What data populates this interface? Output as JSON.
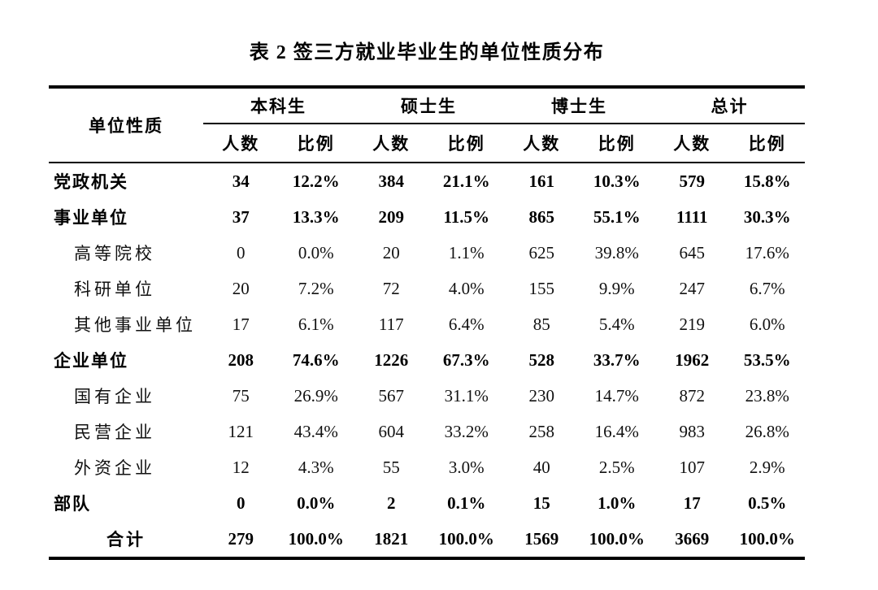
{
  "title": "表 2 签三方就业毕业生的单位性质分布",
  "colors": {
    "background": "#ffffff",
    "text": "#000000",
    "rule": "#000000"
  },
  "table": {
    "corner_header": "单位性质",
    "groups": [
      {
        "label": "本科生"
      },
      {
        "label": "硕士生"
      },
      {
        "label": "博士生"
      },
      {
        "label": "总计"
      }
    ],
    "sub_headers": [
      "人数",
      "比例",
      "人数",
      "比例",
      "人数",
      "比例",
      "人数",
      "比例"
    ],
    "rows": [
      {
        "label": "党政机关",
        "style": "category",
        "values": [
          "34",
          "12.2%",
          "384",
          "21.1%",
          "161",
          "10.3%",
          "579",
          "15.8%"
        ]
      },
      {
        "label": "事业单位",
        "style": "category",
        "values": [
          "37",
          "13.3%",
          "209",
          "11.5%",
          "865",
          "55.1%",
          "1111",
          "30.3%"
        ]
      },
      {
        "label": "高等院校",
        "style": "sub",
        "values": [
          "0",
          "0.0%",
          "20",
          "1.1%",
          "625",
          "39.8%",
          "645",
          "17.6%"
        ]
      },
      {
        "label": "科研单位",
        "style": "sub",
        "values": [
          "20",
          "7.2%",
          "72",
          "4.0%",
          "155",
          "9.9%",
          "247",
          "6.7%"
        ]
      },
      {
        "label": "其他事业单位",
        "style": "sub",
        "values": [
          "17",
          "6.1%",
          "117",
          "6.4%",
          "85",
          "5.4%",
          "219",
          "6.0%"
        ]
      },
      {
        "label": "企业单位",
        "style": "category",
        "values": [
          "208",
          "74.6%",
          "1226",
          "67.3%",
          "528",
          "33.7%",
          "1962",
          "53.5%"
        ]
      },
      {
        "label": "国有企业",
        "style": "sub",
        "values": [
          "75",
          "26.9%",
          "567",
          "31.1%",
          "230",
          "14.7%",
          "872",
          "23.8%"
        ]
      },
      {
        "label": "民营企业",
        "style": "sub",
        "values": [
          "121",
          "43.4%",
          "604",
          "33.2%",
          "258",
          "16.4%",
          "983",
          "26.8%"
        ]
      },
      {
        "label": "外资企业",
        "style": "sub",
        "values": [
          "12",
          "4.3%",
          "55",
          "3.0%",
          "40",
          "2.5%",
          "107",
          "2.9%"
        ]
      },
      {
        "label": "部队",
        "style": "category",
        "values": [
          "0",
          "0.0%",
          "2",
          "0.1%",
          "15",
          "1.0%",
          "17",
          "0.5%"
        ]
      },
      {
        "label": "合计",
        "style": "total",
        "values": [
          "279",
          "100.0%",
          "1821",
          "100.0%",
          "1569",
          "100.0%",
          "3669",
          "100.0%"
        ]
      }
    ]
  }
}
